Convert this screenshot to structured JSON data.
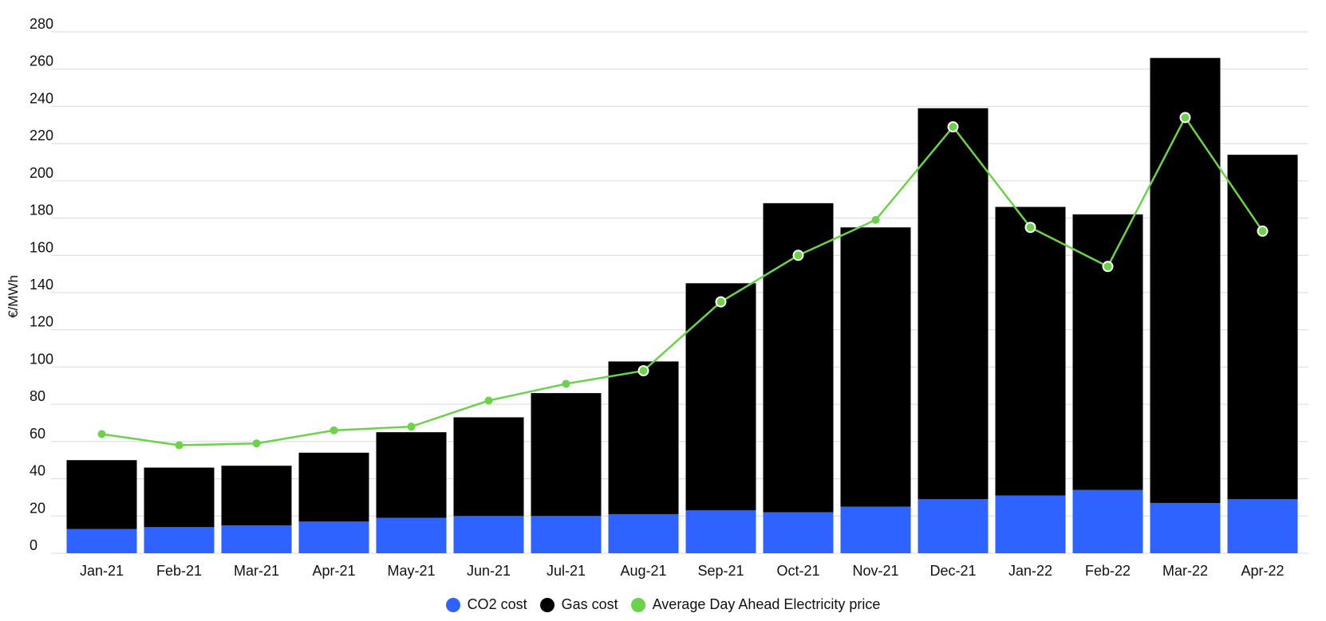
{
  "chart_data": {
    "type": "bar",
    "stacked": true,
    "categories": [
      "Jan-21",
      "Feb-21",
      "Mar-21",
      "Apr-21",
      "May-21",
      "Jun-21",
      "Jul-21",
      "Aug-21",
      "Sep-21",
      "Oct-21",
      "Nov-21",
      "Dec-21",
      "Jan-22",
      "Feb-22",
      "Mar-22",
      "Apr-22"
    ],
    "series": [
      {
        "name": "CO2 cost",
        "type": "bar",
        "color": "#2f63ff",
        "values": [
          13,
          14,
          15,
          17,
          19,
          20,
          20,
          21,
          23,
          22,
          25,
          29,
          31,
          34,
          27,
          29
        ]
      },
      {
        "name": "Gas cost",
        "type": "bar",
        "color": "#000000",
        "values": [
          37,
          32,
          32,
          37,
          46,
          53,
          66,
          82,
          122,
          166,
          150,
          210,
          155,
          148,
          239,
          185
        ]
      },
      {
        "name": "Average Day Ahead Electricity price",
        "type": "line",
        "color": "#6dd14b",
        "values": [
          64,
          58,
          59,
          66,
          68,
          82,
          91,
          98,
          135,
          160,
          179,
          229,
          175,
          154,
          234,
          173
        ]
      }
    ],
    "highlighted_points": [
      7,
      8,
      9,
      11,
      12,
      13,
      14,
      15
    ],
    "ylabel": "€/MWh",
    "ylim": [
      0,
      280
    ],
    "yticks": [
      0,
      20,
      40,
      60,
      80,
      100,
      120,
      140,
      160,
      180,
      200,
      220,
      240,
      260,
      280
    ],
    "grid": true,
    "legend_position": "bottom"
  }
}
